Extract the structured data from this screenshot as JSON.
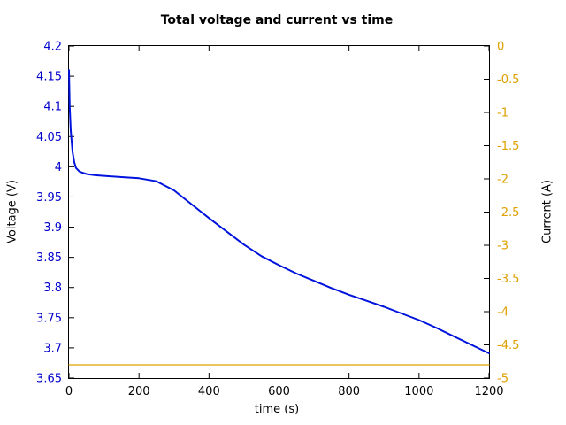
{
  "figure": {
    "title": "Total voltage and current vs time",
    "xlabel": "time (s)",
    "ylabel_left": "Voltage (V)",
    "ylabel_right": "Current (A)"
  },
  "chart_data": {
    "type": "line",
    "title": "Total voltage and current vs time",
    "xlabel": "time (s)",
    "ylabel_left": "Voltage (V)",
    "ylabel_right": "Current (A)",
    "grid": false,
    "legend": "none",
    "frame_color": "#000000",
    "axes": {
      "x": {
        "min": 0,
        "max": 1200,
        "ticks": [
          0,
          200,
          400,
          600,
          800,
          1000,
          1200
        ],
        "label_color": "#000000"
      },
      "y_left": {
        "min": 3.65,
        "max": 4.2,
        "ticks": [
          3.65,
          3.7,
          3.75,
          3.8,
          3.85,
          3.9,
          3.95,
          4,
          4.05,
          4.1,
          4.15,
          4.2
        ],
        "label_color": "#0000cc"
      },
      "y_right": {
        "min": -5,
        "max": 0,
        "ticks": [
          -5,
          -4.5,
          -4,
          -3.5,
          -3,
          -2.5,
          -2,
          -1.5,
          -1,
          -0.5,
          0
        ],
        "label_color": "#dfa000"
      }
    },
    "series": [
      {
        "name": "Total voltage",
        "axis": "left",
        "color": "#0013dd",
        "width": 2,
        "x": [
          0,
          2,
          5,
          10,
          15,
          20,
          30,
          40,
          50,
          75,
          100,
          150,
          200,
          250,
          300,
          350,
          400,
          450,
          500,
          550,
          600,
          650,
          700,
          750,
          800,
          850,
          900,
          950,
          1000,
          1050,
          1100,
          1150,
          1200
        ],
        "y": [
          4.16,
          4.1,
          4.06,
          4.025,
          4.008,
          3.998,
          3.992,
          3.99,
          3.988,
          3.986,
          3.985,
          3.983,
          3.981,
          3.976,
          3.961,
          3.938,
          3.915,
          3.893,
          3.871,
          3.852,
          3.837,
          3.823,
          3.811,
          3.799,
          3.788,
          3.778,
          3.768,
          3.757,
          3.746,
          3.733,
          3.719,
          3.705,
          3.691
        ]
      },
      {
        "name": "Current",
        "axis": "right",
        "color": "#dfa000",
        "width": 1.3,
        "x": [
          0,
          1200
        ],
        "y": [
          -4.8,
          -4.8
        ]
      }
    ]
  }
}
